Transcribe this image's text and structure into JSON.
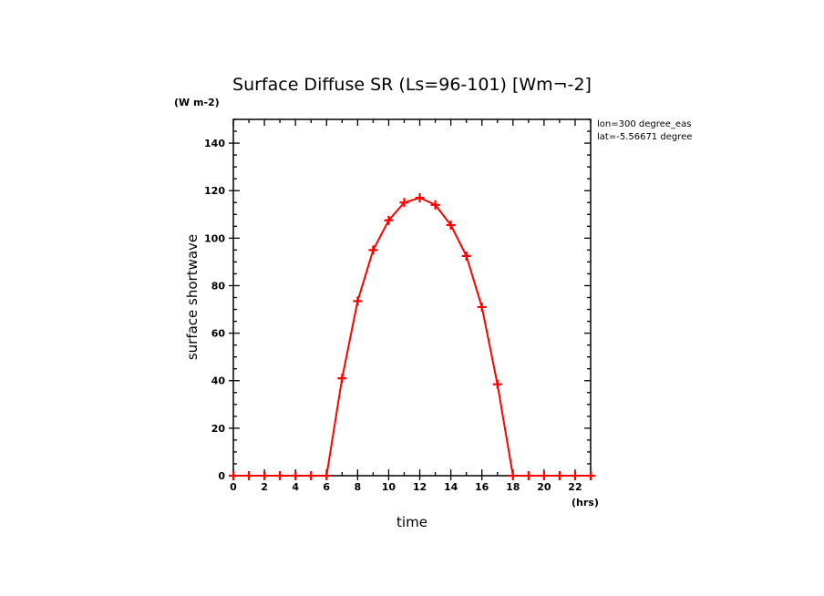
{
  "chart_data": {
    "type": "line",
    "title": "Surface Diffuse SR (Ls=96-101) [Wm¬-2]",
    "units_label": "(W m-2)",
    "xlabel": "time",
    "x_units": "(hrs)",
    "ylabel": "surface shortwave",
    "annotations": [
      "lon=300 degree_eas",
      "lat=-5.56671 degree"
    ],
    "xlim": [
      0,
      23
    ],
    "ylim": [
      0,
      150
    ],
    "x_ticks": [
      0,
      2,
      4,
      6,
      8,
      10,
      12,
      14,
      16,
      18,
      20,
      22
    ],
    "y_ticks": [
      0,
      20,
      40,
      60,
      80,
      100,
      120,
      140
    ],
    "grid": false,
    "series": [
      {
        "name": "surface shortwave",
        "color": "#ff0000",
        "marker": "+",
        "x": [
          0,
          1,
          2,
          3,
          4,
          5,
          6,
          7,
          8,
          9,
          10,
          11,
          12,
          13,
          14,
          15,
          16,
          17,
          18,
          19,
          20,
          21,
          22,
          23
        ],
        "values": [
          0,
          0,
          0,
          0,
          0,
          0,
          0,
          41,
          73.5,
          95,
          107.5,
          115,
          117,
          114,
          105.5,
          92.5,
          71,
          38.5,
          0,
          0,
          0,
          0,
          0,
          0
        ]
      }
    ]
  }
}
